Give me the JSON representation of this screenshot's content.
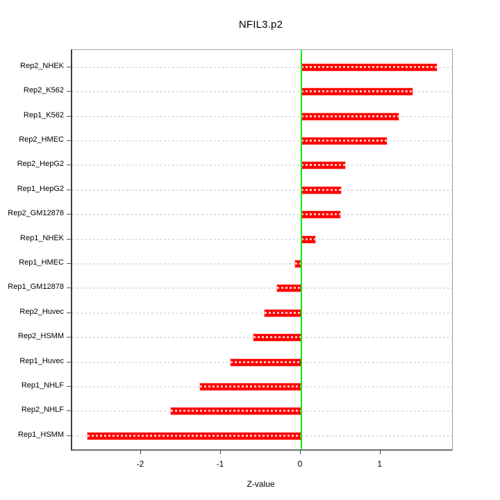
{
  "title": "NFIL3.p2",
  "chart_data": {
    "type": "bar",
    "orientation": "horizontal",
    "title": "NFIL3.p2",
    "xlabel": "Z-value",
    "ylabel": "",
    "categories": [
      "Rep2_NHEK",
      "Rep2_K562",
      "Rep1_K562",
      "Rep2_HMEC",
      "Rep2_HepG2",
      "Rep1_HepG2",
      "Rep2_GM12878",
      "Rep1_NHEK",
      "Rep1_HMEC",
      "Rep1_GM12878",
      "Rep2_Huvec",
      "Rep2_HSMM",
      "Rep1_Huvec",
      "Rep1_NHLF",
      "Rep2_NHLF",
      "Rep1_HSMM"
    ],
    "values": [
      1.7,
      1.39,
      1.22,
      1.07,
      0.55,
      0.5,
      0.49,
      0.18,
      -0.08,
      -0.3,
      -0.46,
      -0.6,
      -0.89,
      -1.27,
      -1.63,
      -2.68
    ],
    "x_ticks": [
      -2,
      -1,
      0,
      1
    ],
    "x_tick_labels": [
      "-2",
      "-1",
      "0",
      "1"
    ],
    "xlim": [
      -2.87,
      1.89
    ],
    "grid": "dotted horizontal line per category row",
    "legend": "none",
    "colors": {
      "bar": "#ff0000",
      "zero_line": "#00ee00",
      "gridline": "#e0e0e0",
      "text": "#000000"
    }
  }
}
